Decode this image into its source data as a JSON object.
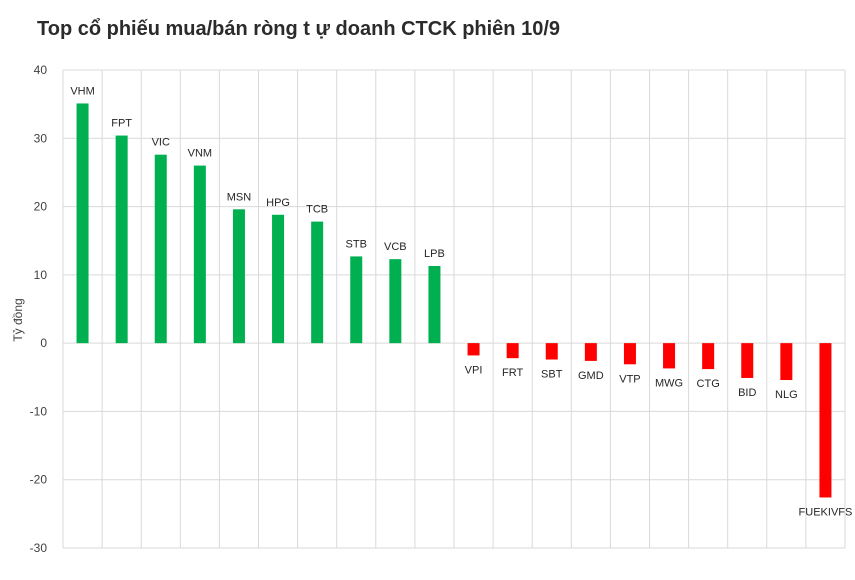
{
  "chart_data": {
    "type": "bar",
    "title": "Top cổ phiếu mua/bán ròng t ự doanh CTCK phiên 10/9",
    "xlabel": "",
    "ylabel": "Tỷ đồng",
    "ylim": [
      -30,
      40
    ],
    "yticks": [
      40,
      30,
      20,
      10,
      0,
      -10,
      -20,
      -30
    ],
    "grid": true,
    "categories": [
      "VHM",
      "FPT",
      "VIC",
      "VNM",
      "MSN",
      "HPG",
      "TCB",
      "STB",
      "VCB",
      "LPB",
      "VPI",
      "FRT",
      "SBT",
      "GMD",
      "VTP",
      "MWG",
      "CTG",
      "BID",
      "NLG",
      "FUEKIVFS"
    ],
    "values": [
      35.1,
      30.4,
      27.6,
      26.0,
      19.6,
      18.8,
      17.8,
      12.7,
      12.3,
      11.3,
      -1.8,
      -2.2,
      -2.4,
      -2.6,
      -3.1,
      -3.7,
      -3.8,
      -5.1,
      -5.4,
      -22.6
    ],
    "colors": {
      "positive": "#00b050",
      "negative": "#ff0000"
    }
  }
}
